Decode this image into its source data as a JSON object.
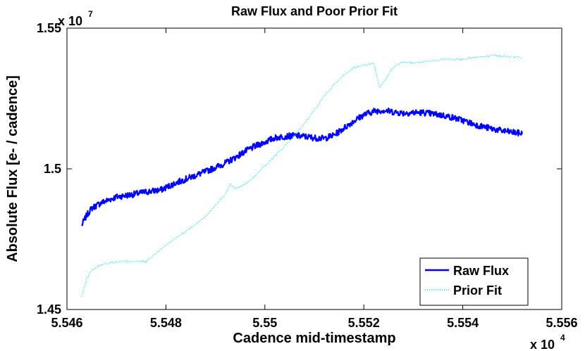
{
  "chart_data": {
    "type": "line",
    "title": "Raw Flux and Poor Prior Fit",
    "xlabel": "Cadence mid-timestamp",
    "ylabel": "Absolute Flux [e- / cadence]",
    "x_multiplier": {
      "base": "x 10",
      "exp": "4"
    },
    "y_multiplier": {
      "base": "x 10",
      "exp": "7"
    },
    "xlim": [
      5.546,
      5.556
    ],
    "ylim": [
      1.45,
      1.55
    ],
    "xticks": [
      5.546,
      5.548,
      5.55,
      5.552,
      5.554,
      5.556
    ],
    "xtick_labels": [
      "5.546",
      "5.548",
      "5.55",
      "5.552",
      "5.554",
      "5.556"
    ],
    "yticks": [
      1.45,
      1.5,
      1.55
    ],
    "ytick_labels": [
      "1.45",
      "1.5",
      "1.55"
    ],
    "grid": false,
    "legend_position": "bottom-right",
    "series": [
      {
        "name": "Raw Flux",
        "style": "solid",
        "color": "#0000ff",
        "x": [
          5.5463,
          5.5464,
          5.5465,
          5.5467,
          5.547,
          5.5473,
          5.5476,
          5.5479,
          5.5482,
          5.5485,
          5.5488,
          5.549,
          5.5492,
          5.5494,
          5.5496,
          5.5498,
          5.55,
          5.5502,
          5.5504,
          5.5506,
          5.5508,
          5.551,
          5.5512,
          5.5514,
          5.5516,
          5.5518,
          5.552,
          5.5522,
          5.5524,
          5.5526,
          5.5528,
          5.553,
          5.5532,
          5.5534,
          5.5536,
          5.5538,
          5.554,
          5.5542,
          5.5544,
          5.5546,
          5.5548,
          5.555,
          5.5552
        ],
        "y": [
          1.48,
          1.4835,
          1.486,
          1.488,
          1.49,
          1.4908,
          1.4918,
          1.4925,
          1.495,
          1.497,
          1.499,
          1.5005,
          1.502,
          1.504,
          1.5062,
          1.508,
          1.5095,
          1.511,
          1.5115,
          1.5118,
          1.5115,
          1.511,
          1.5108,
          1.512,
          1.5145,
          1.517,
          1.5192,
          1.5205,
          1.5208,
          1.5202,
          1.5198,
          1.52,
          1.52,
          1.5195,
          1.519,
          1.5182,
          1.5172,
          1.516,
          1.515,
          1.5142,
          1.5135,
          1.513,
          1.5125
        ]
      },
      {
        "name": "Prior Fit",
        "style": "dotted",
        "color": "#00e5ee",
        "x": [
          5.5463,
          5.5464,
          5.5465,
          5.5467,
          5.547,
          5.5473,
          5.5476,
          5.5477,
          5.5479,
          5.5482,
          5.5485,
          5.5488,
          5.549,
          5.5492,
          5.5493,
          5.5494,
          5.5496,
          5.5498,
          5.55,
          5.5502,
          5.5504,
          5.5506,
          5.5508,
          5.551,
          5.5512,
          5.5514,
          5.5516,
          5.5518,
          5.552,
          5.5522,
          5.55225,
          5.55232,
          5.5524,
          5.5526,
          5.5528,
          5.553,
          5.5532,
          5.5534,
          5.5536,
          5.5538,
          5.554,
          5.5542,
          5.5544,
          5.5546,
          5.5548,
          5.555,
          5.5552
        ],
        "y": [
          1.4545,
          1.461,
          1.464,
          1.466,
          1.467,
          1.4672,
          1.467,
          1.4685,
          1.4715,
          1.4755,
          1.479,
          1.483,
          1.487,
          1.491,
          1.4945,
          1.493,
          1.4945,
          1.4975,
          1.501,
          1.5045,
          1.508,
          1.512,
          1.516,
          1.521,
          1.526,
          1.53,
          1.5335,
          1.536,
          1.5368,
          1.5375,
          1.534,
          1.5285,
          1.531,
          1.536,
          1.538,
          1.5375,
          1.538,
          1.5385,
          1.539,
          1.5388,
          1.539,
          1.5395,
          1.54,
          1.5402,
          1.54,
          1.5398,
          1.5395
        ]
      }
    ]
  }
}
